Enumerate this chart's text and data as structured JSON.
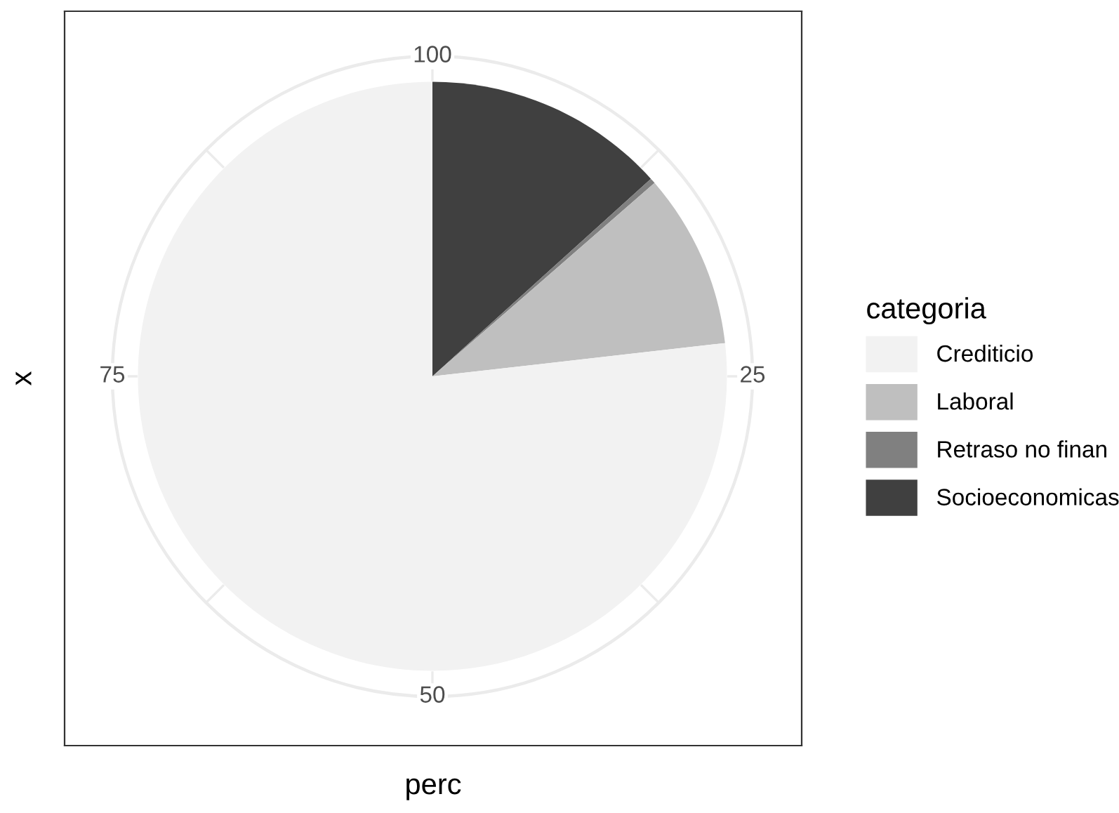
{
  "chart_data": {
    "type": "pie",
    "xlabel": "perc",
    "ylabel": "x",
    "legend_title": "categoria",
    "categories": [
      "Crediticio",
      "Laboral",
      "Retraso no finan",
      "Socioeconomicas"
    ],
    "values": [
      76.8,
      9.6,
      0.3,
      13.3
    ],
    "colors": [
      "#f2f2f2",
      "#bfbfbf",
      "#808080",
      "#404040"
    ],
    "annotations": [
      "100",
      "25",
      "50",
      "75"
    ],
    "grid": true,
    "legend": "right"
  }
}
